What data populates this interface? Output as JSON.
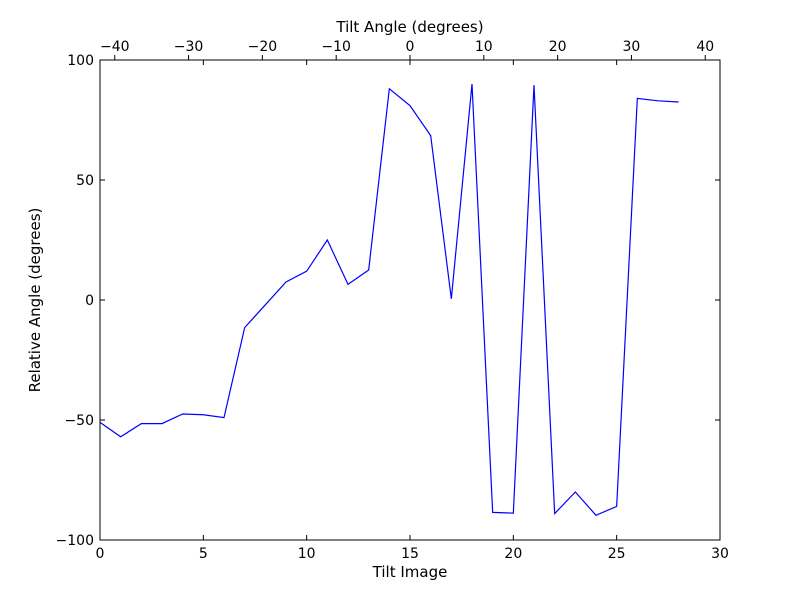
{
  "chart_data": {
    "type": "line",
    "title": "",
    "xlabel": "Tilt Image",
    "ylabel": "Relative Angle (degrees)",
    "x2label": "Tilt Angle (degrees)",
    "xlim": [
      0,
      30
    ],
    "ylim": [
      -100,
      100
    ],
    "x2lim": [
      -42,
      42
    ],
    "xticks": [
      0,
      5,
      10,
      15,
      20,
      25,
      30
    ],
    "yticks": [
      -100,
      -50,
      0,
      50,
      100
    ],
    "x2ticks": [
      -40,
      -30,
      -20,
      -10,
      0,
      10,
      20,
      30,
      40
    ],
    "xtick_labels": [
      "0",
      "5",
      "10",
      "15",
      "20",
      "25",
      "30"
    ],
    "ytick_labels": [
      "−100",
      "−50",
      "0",
      "50",
      "100"
    ],
    "x2tick_labels": [
      "−40",
      "−30",
      "−20",
      "−10",
      "0",
      "10",
      "20",
      "30",
      "40"
    ],
    "grid": false,
    "line_color": "#0000ff",
    "series": [
      {
        "x": [
          0,
          1,
          2,
          3,
          4,
          5,
          6,
          7,
          8,
          9,
          10,
          11,
          12,
          13,
          14,
          15,
          16,
          17,
          18,
          19,
          20,
          21,
          22,
          23,
          24,
          25,
          26,
          27,
          28
        ],
        "values": [
          -51,
          -57,
          -51.5,
          -51.5,
          -47.5,
          -47.8,
          -49,
          -11.5,
          -2,
          7.5,
          12,
          25,
          6.5,
          12.5,
          88,
          81,
          68.5,
          0.5,
          90,
          -88.5,
          -88.8,
          89.5,
          -89,
          -80,
          -89.7,
          -86,
          84,
          83,
          82.5
        ]
      }
    ]
  }
}
